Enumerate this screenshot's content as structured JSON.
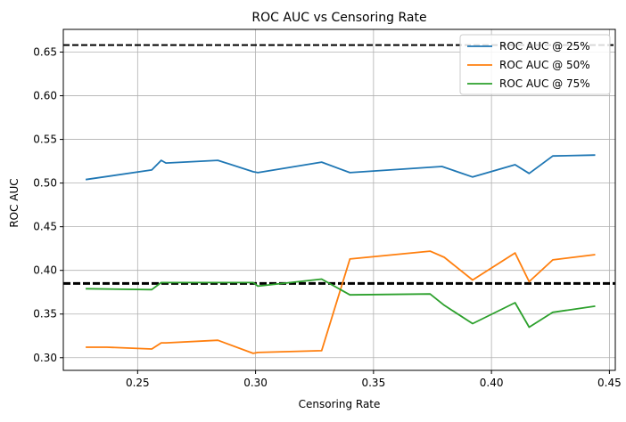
{
  "chart_data": {
    "type": "line",
    "title": "ROC AUC vs Censoring Rate",
    "xlabel": "Censoring Rate",
    "ylabel": "ROC AUC",
    "xlim": [
      0.2185,
      0.4525
    ],
    "ylim": [
      0.2855,
      0.676
    ],
    "xticks": [
      0.25,
      0.3,
      0.35,
      0.4,
      0.45
    ],
    "xtick_labels": [
      "0.25",
      "0.30",
      "0.35",
      "0.40",
      "0.45"
    ],
    "yticks": [
      0.3,
      0.35,
      0.4,
      0.45,
      0.5,
      0.55,
      0.6,
      0.65
    ],
    "ytick_labels": [
      "0.30",
      "0.35",
      "0.40",
      "0.45",
      "0.50",
      "0.55",
      "0.60",
      "0.65"
    ],
    "grid": true,
    "legend_position": "top-right",
    "hlines": [
      {
        "y": 0.658,
        "color": "#000000",
        "style": "dashed"
      },
      {
        "y": 0.385,
        "color": "#000000",
        "style": "dashed"
      }
    ],
    "series": [
      {
        "name": "ROC AUC @ 25%",
        "color": "#1f77b4",
        "x": [
          0.228,
          0.256,
          0.26,
          0.262,
          0.284,
          0.299,
          0.301,
          0.328,
          0.34,
          0.379,
          0.392,
          0.41,
          0.416,
          0.426,
          0.444
        ],
        "y": [
          0.504,
          0.515,
          0.526,
          0.523,
          0.526,
          0.513,
          0.512,
          0.524,
          0.512,
          0.519,
          0.507,
          0.521,
          0.511,
          0.531,
          0.532
        ]
      },
      {
        "name": "ROC AUC @ 50%",
        "color": "#ff7f0e",
        "x": [
          0.228,
          0.237,
          0.256,
          0.26,
          0.262,
          0.284,
          0.299,
          0.301,
          0.328,
          0.34,
          0.374,
          0.38,
          0.392,
          0.41,
          0.416,
          0.426,
          0.444
        ],
        "y": [
          0.312,
          0.312,
          0.31,
          0.317,
          0.317,
          0.32,
          0.305,
          0.306,
          0.308,
          0.413,
          0.422,
          0.415,
          0.389,
          0.42,
          0.387,
          0.412,
          0.418
        ]
      },
      {
        "name": "ROC AUC @ 75%",
        "color": "#2ca02c",
        "x": [
          0.228,
          0.256,
          0.26,
          0.284,
          0.299,
          0.301,
          0.328,
          0.34,
          0.374,
          0.38,
          0.392,
          0.41,
          0.416,
          0.426,
          0.444
        ],
        "y": [
          0.379,
          0.378,
          0.386,
          0.386,
          0.386,
          0.382,
          0.39,
          0.372,
          0.373,
          0.36,
          0.339,
          0.363,
          0.335,
          0.352,
          0.359
        ]
      }
    ]
  }
}
